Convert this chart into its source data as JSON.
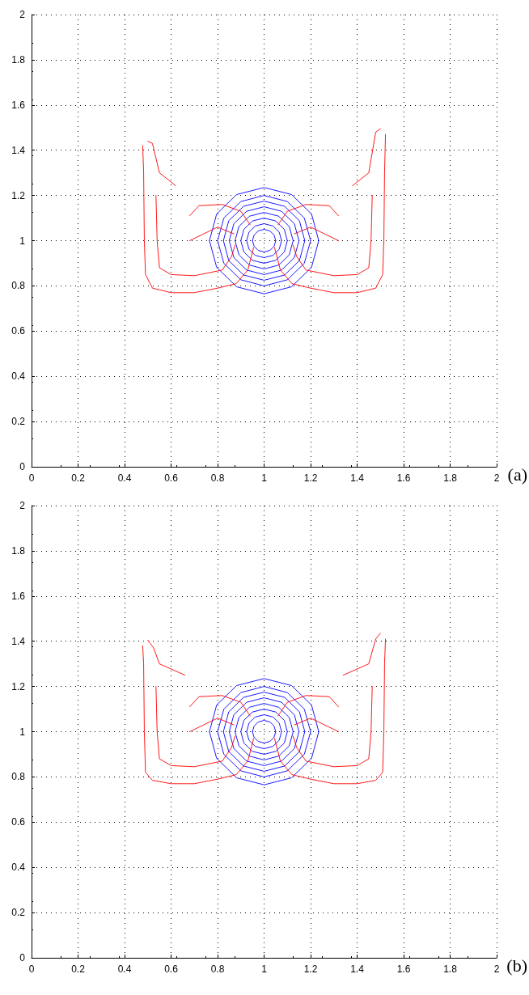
{
  "chart_data": [
    {
      "type": "line",
      "annotations": [
        "(a)"
      ],
      "xlim": [
        0,
        2
      ],
      "ylim": [
        0,
        2
      ],
      "xticks": [
        0,
        0.2,
        0.4,
        0.6,
        0.8,
        1,
        1.2,
        1.4,
        1.6,
        1.8,
        2
      ],
      "yticks": [
        0,
        0.2,
        0.4,
        0.6,
        0.8,
        1,
        1.2,
        1.4,
        1.6,
        1.8,
        2
      ],
      "grid": true,
      "marker": "none",
      "line_style": "solid",
      "series": [
        {
          "color": "#0000ff",
          "x": [
            0.95,
            0.957,
            0.975,
            1,
            1.025,
            1.043,
            1.05
          ],
          "values": [
            1,
            1.025,
            1.043,
            1.05,
            1.043,
            1.025,
            1
          ]
        },
        {
          "color": "#0000ff",
          "x": [
            0.95,
            0.957,
            0.975,
            1,
            1.025,
            1.043,
            1.05
          ],
          "values": [
            1,
            0.975,
            0.957,
            0.95,
            0.957,
            0.975,
            1
          ]
        },
        {
          "color": "#0000ff",
          "x": [
            0.925,
            0.935,
            0.962,
            1,
            1.038,
            1.065,
            1.075
          ],
          "values": [
            1,
            1.038,
            1.065,
            1.075,
            1.065,
            1.038,
            1
          ]
        },
        {
          "color": "#0000ff",
          "x": [
            0.925,
            0.935,
            0.962,
            1,
            1.038,
            1.065,
            1.075
          ],
          "values": [
            1,
            0.962,
            0.935,
            0.925,
            0.935,
            0.962,
            1
          ]
        },
        {
          "color": "#0000ff",
          "x": [
            0.9,
            0.913,
            0.95,
            1,
            1.05,
            1.087,
            1.1
          ],
          "values": [
            1,
            1.05,
            1.087,
            1.1,
            1.087,
            1.05,
            1
          ]
        },
        {
          "color": "#0000ff",
          "x": [
            0.9,
            0.913,
            0.95,
            1,
            1.05,
            1.087,
            1.1
          ],
          "values": [
            1,
            0.95,
            0.913,
            0.9,
            0.913,
            0.95,
            1
          ]
        },
        {
          "color": "#0000ff",
          "x": [
            0.875,
            0.892,
            0.937,
            1,
            1.063,
            1.108,
            1.125
          ],
          "values": [
            1,
            1.063,
            1.108,
            1.125,
            1.108,
            1.063,
            1
          ]
        },
        {
          "color": "#0000ff",
          "x": [
            0.875,
            0.892,
            0.937,
            1,
            1.063,
            1.108,
            1.125
          ],
          "values": [
            1,
            0.937,
            0.892,
            0.875,
            0.892,
            0.937,
            1
          ]
        },
        {
          "color": "#0000ff",
          "x": [
            0.85,
            0.87,
            0.925,
            1,
            1.075,
            1.13,
            1.15
          ],
          "values": [
            1,
            1.075,
            1.13,
            1.15,
            1.13,
            1.075,
            1
          ]
        },
        {
          "color": "#0000ff",
          "x": [
            0.85,
            0.87,
            0.925,
            1,
            1.075,
            1.13,
            1.15
          ],
          "values": [
            1,
            0.925,
            0.87,
            0.85,
            0.87,
            0.925,
            1
          ]
        },
        {
          "color": "#0000ff",
          "x": [
            0.825,
            0.848,
            0.912,
            1,
            1.088,
            1.152,
            1.175
          ],
          "values": [
            1,
            1.088,
            1.152,
            1.175,
            1.152,
            1.088,
            1
          ]
        },
        {
          "color": "#0000ff",
          "x": [
            0.825,
            0.848,
            0.912,
            1,
            1.088,
            1.152,
            1.175
          ],
          "values": [
            1,
            0.912,
            0.848,
            0.825,
            0.848,
            0.912,
            1
          ]
        },
        {
          "color": "#0000ff",
          "x": [
            0.8,
            0.827,
            0.9,
            1,
            1.1,
            1.173,
            1.2
          ],
          "values": [
            1,
            1.1,
            1.173,
            1.2,
            1.173,
            1.1,
            1
          ]
        },
        {
          "color": "#0000ff",
          "x": [
            0.8,
            0.827,
            0.9,
            1,
            1.1,
            1.173,
            1.2
          ],
          "values": [
            1,
            0.9,
            0.827,
            0.8,
            0.827,
            0.9,
            1
          ]
        },
        {
          "color": "#0000ff",
          "x": [
            0.765,
            0.796,
            0.882,
            1,
            1.118,
            1.204,
            1.235
          ],
          "values": [
            1,
            1.118,
            1.204,
            1.235,
            1.204,
            1.118,
            1
          ]
        },
        {
          "color": "#0000ff",
          "x": [
            0.765,
            0.796,
            0.882,
            1,
            1.118,
            1.204,
            1.235
          ],
          "values": [
            1,
            0.882,
            0.796,
            0.765,
            0.796,
            0.882,
            1
          ]
        },
        {
          "color": "#ff0000",
          "x": [
            0.478,
            0.482,
            0.485,
            0.49,
            0.52,
            0.6,
            0.7,
            0.8,
            0.88,
            0.93,
            0.955
          ],
          "values": [
            1.42,
            1.3,
            1,
            0.85,
            0.79,
            0.77,
            0.77,
            0.79,
            0.81,
            0.87,
            0.97
          ]
        },
        {
          "color": "#ff0000",
          "x": [
            0.68,
            0.72,
            0.82,
            0.9,
            0.94
          ],
          "values": [
            1.11,
            1.155,
            1.16,
            1.13,
            1.07
          ]
        },
        {
          "color": "#ff0000",
          "x": [
            0.68,
            0.72,
            0.8,
            0.87
          ],
          "values": [
            1,
            1.02,
            1.06,
            1.03
          ]
        },
        {
          "color": "#ff0000",
          "x": [
            0.535,
            0.54,
            0.55,
            0.6,
            0.7,
            0.82,
            0.86,
            0.875
          ],
          "values": [
            1.2,
            1,
            0.88,
            0.85,
            0.845,
            0.87,
            0.93,
            0.98
          ]
        },
        {
          "color": "#ff0000",
          "x": [
            0.5,
            0.52,
            0.55,
            0.62
          ],
          "values": [
            1.44,
            1.43,
            1.3,
            1.243
          ]
        },
        {
          "color": "#ff0000",
          "x": [
            1.045,
            1.07,
            1.12,
            1.2,
            1.3,
            1.4,
            1.48,
            1.51,
            1.515,
            1.518,
            1.522
          ],
          "values": [
            0.97,
            0.87,
            0.81,
            0.79,
            0.77,
            0.77,
            0.79,
            0.85,
            1,
            1.3,
            1.47
          ]
        },
        {
          "color": "#ff0000",
          "x": [
            1.06,
            1.1,
            1.18,
            1.28,
            1.32
          ],
          "values": [
            1.07,
            1.13,
            1.16,
            1.155,
            1.11
          ]
        },
        {
          "color": "#ff0000",
          "x": [
            1.13,
            1.2,
            1.28,
            1.32
          ],
          "values": [
            1.03,
            1.06,
            1.02,
            1
          ]
        },
        {
          "color": "#ff0000",
          "x": [
            1.125,
            1.14,
            1.18,
            1.3,
            1.4,
            1.45,
            1.46,
            1.465
          ],
          "values": [
            0.98,
            0.93,
            0.87,
            0.845,
            0.85,
            0.88,
            1,
            1.2
          ]
        },
        {
          "color": "#ff0000",
          "x": [
            1.38,
            1.45,
            1.48,
            1.5
          ],
          "values": [
            1.243,
            1.3,
            1.48,
            1.495
          ]
        }
      ]
    },
    {
      "type": "line",
      "annotations": [
        "(b)"
      ],
      "xlim": [
        0,
        2
      ],
      "ylim": [
        0,
        2
      ],
      "xticks": [
        0,
        0.2,
        0.4,
        0.6,
        0.8,
        1,
        1.2,
        1.4,
        1.6,
        1.8,
        2
      ],
      "yticks": [
        0,
        0.2,
        0.4,
        0.6,
        0.8,
        1,
        1.2,
        1.4,
        1.6,
        1.8,
        2
      ],
      "grid": true,
      "marker": "none",
      "line_style": "solid",
      "series": [
        {
          "color": "#0000ff",
          "x": [
            0.95,
            0.957,
            0.975,
            1,
            1.025,
            1.043,
            1.05
          ],
          "values": [
            1,
            1.025,
            1.043,
            1.05,
            1.043,
            1.025,
            1
          ]
        },
        {
          "color": "#0000ff",
          "x": [
            0.95,
            0.957,
            0.975,
            1,
            1.025,
            1.043,
            1.05
          ],
          "values": [
            1,
            0.975,
            0.957,
            0.95,
            0.957,
            0.975,
            1
          ]
        },
        {
          "color": "#0000ff",
          "x": [
            0.925,
            0.935,
            0.962,
            1,
            1.038,
            1.065,
            1.075
          ],
          "values": [
            1,
            1.038,
            1.065,
            1.075,
            1.065,
            1.038,
            1
          ]
        },
        {
          "color": "#0000ff",
          "x": [
            0.925,
            0.935,
            0.962,
            1,
            1.038,
            1.065,
            1.075
          ],
          "values": [
            1,
            0.962,
            0.935,
            0.925,
            0.935,
            0.962,
            1
          ]
        },
        {
          "color": "#0000ff",
          "x": [
            0.9,
            0.913,
            0.95,
            1,
            1.05,
            1.087,
            1.1
          ],
          "values": [
            1,
            1.05,
            1.087,
            1.1,
            1.087,
            1.05,
            1
          ]
        },
        {
          "color": "#0000ff",
          "x": [
            0.9,
            0.913,
            0.95,
            1,
            1.05,
            1.087,
            1.1
          ],
          "values": [
            1,
            0.95,
            0.913,
            0.9,
            0.913,
            0.95,
            1
          ]
        },
        {
          "color": "#0000ff",
          "x": [
            0.875,
            0.892,
            0.937,
            1,
            1.063,
            1.108,
            1.125
          ],
          "values": [
            1,
            1.063,
            1.108,
            1.125,
            1.108,
            1.063,
            1
          ]
        },
        {
          "color": "#0000ff",
          "x": [
            0.875,
            0.892,
            0.937,
            1,
            1.063,
            1.108,
            1.125
          ],
          "values": [
            1,
            0.937,
            0.892,
            0.875,
            0.892,
            0.937,
            1
          ]
        },
        {
          "color": "#0000ff",
          "x": [
            0.85,
            0.87,
            0.925,
            1,
            1.075,
            1.13,
            1.15
          ],
          "values": [
            1,
            1.075,
            1.13,
            1.15,
            1.13,
            1.075,
            1
          ]
        },
        {
          "color": "#0000ff",
          "x": [
            0.85,
            0.87,
            0.925,
            1,
            1.075,
            1.13,
            1.15
          ],
          "values": [
            1,
            0.925,
            0.87,
            0.85,
            0.87,
            0.925,
            1
          ]
        },
        {
          "color": "#0000ff",
          "x": [
            0.825,
            0.848,
            0.912,
            1,
            1.088,
            1.152,
            1.175
          ],
          "values": [
            1,
            1.088,
            1.152,
            1.175,
            1.152,
            1.088,
            1
          ]
        },
        {
          "color": "#0000ff",
          "x": [
            0.825,
            0.848,
            0.912,
            1,
            1.088,
            1.152,
            1.175
          ],
          "values": [
            1,
            0.912,
            0.848,
            0.825,
            0.848,
            0.912,
            1
          ]
        },
        {
          "color": "#0000ff",
          "x": [
            0.8,
            0.827,
            0.9,
            1,
            1.1,
            1.173,
            1.2
          ],
          "values": [
            1,
            1.1,
            1.173,
            1.2,
            1.173,
            1.1,
            1
          ]
        },
        {
          "color": "#0000ff",
          "x": [
            0.8,
            0.827,
            0.9,
            1,
            1.1,
            1.173,
            1.2
          ],
          "values": [
            1,
            0.9,
            0.827,
            0.8,
            0.827,
            0.9,
            1
          ]
        },
        {
          "color": "#0000ff",
          "x": [
            0.765,
            0.796,
            0.882,
            1,
            1.118,
            1.204,
            1.235
          ],
          "values": [
            1,
            1.118,
            1.204,
            1.235,
            1.204,
            1.118,
            1
          ]
        },
        {
          "color": "#0000ff",
          "x": [
            0.765,
            0.796,
            0.882,
            1,
            1.118,
            1.204,
            1.235
          ],
          "values": [
            1,
            0.882,
            0.796,
            0.765,
            0.796,
            0.882,
            1
          ]
        },
        {
          "color": "#ff0000",
          "x": [
            0.478,
            0.482,
            0.485,
            0.49,
            0.52,
            0.6,
            0.7,
            0.8,
            0.88,
            0.93,
            0.955
          ],
          "values": [
            1.38,
            1.3,
            1,
            0.82,
            0.785,
            0.77,
            0.77,
            0.79,
            0.81,
            0.87,
            0.97
          ]
        },
        {
          "color": "#ff0000",
          "x": [
            0.68,
            0.72,
            0.82,
            0.9,
            0.94
          ],
          "values": [
            1.11,
            1.155,
            1.16,
            1.13,
            1.07
          ]
        },
        {
          "color": "#ff0000",
          "x": [
            0.68,
            0.72,
            0.8,
            0.87
          ],
          "values": [
            1,
            1.02,
            1.06,
            1.03
          ]
        },
        {
          "color": "#ff0000",
          "x": [
            0.535,
            0.54,
            0.55,
            0.6,
            0.7,
            0.82,
            0.86,
            0.875
          ],
          "values": [
            1.2,
            1,
            0.88,
            0.85,
            0.845,
            0.87,
            0.93,
            0.98
          ]
        },
        {
          "color": "#ff0000",
          "x": [
            0.5,
            0.525,
            0.55,
            0.66
          ],
          "values": [
            1.405,
            1.37,
            1.3,
            1.25
          ]
        },
        {
          "color": "#ff0000",
          "x": [
            1.045,
            1.07,
            1.12,
            1.2,
            1.3,
            1.4,
            1.48,
            1.51,
            1.515,
            1.518,
            1.522
          ],
          "values": [
            0.97,
            0.87,
            0.81,
            0.79,
            0.77,
            0.77,
            0.785,
            0.82,
            1,
            1.3,
            1.41
          ]
        },
        {
          "color": "#ff0000",
          "x": [
            1.06,
            1.1,
            1.18,
            1.28,
            1.32
          ],
          "values": [
            1.07,
            1.13,
            1.16,
            1.155,
            1.11
          ]
        },
        {
          "color": "#ff0000",
          "x": [
            1.13,
            1.2,
            1.28,
            1.32
          ],
          "values": [
            1.03,
            1.06,
            1.02,
            1
          ]
        },
        {
          "color": "#ff0000",
          "x": [
            1.125,
            1.14,
            1.18,
            1.3,
            1.4,
            1.45,
            1.46,
            1.465
          ],
          "values": [
            0.98,
            0.93,
            0.87,
            0.845,
            0.85,
            0.88,
            1,
            1.2
          ]
        },
        {
          "color": "#ff0000",
          "x": [
            1.34,
            1.45,
            1.48,
            1.5
          ],
          "values": [
            1.25,
            1.3,
            1.41,
            1.435
          ]
        }
      ]
    }
  ]
}
